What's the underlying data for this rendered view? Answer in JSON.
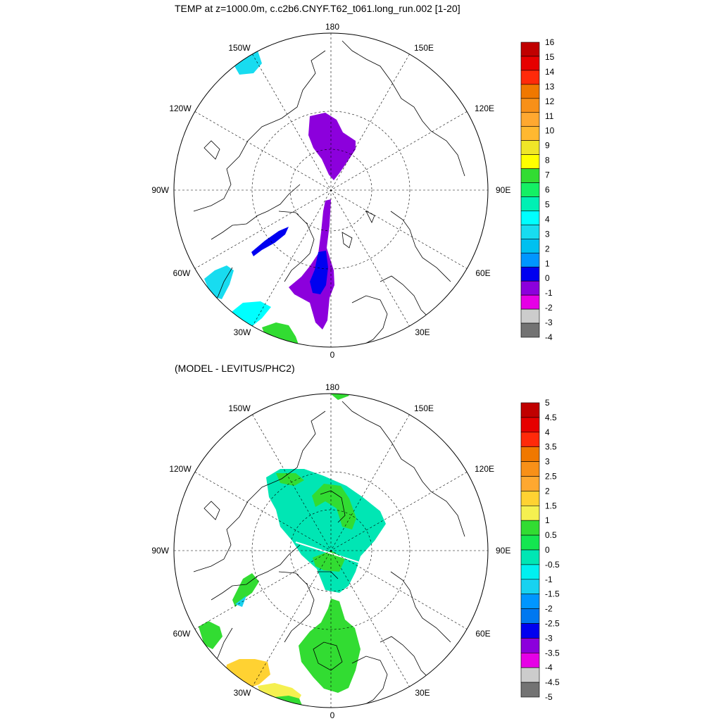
{
  "maps": [
    {
      "title": "TEMP at z=1000.0m, c.c2b6.CNYF.T62_t061.long_run.002 [1-20]",
      "lon_labels": {
        "top": "180",
        "bottom": "0",
        "left": "90W",
        "right": "90E",
        "w150": "150W",
        "w120": "120W",
        "w60": "60W",
        "w30": "30W",
        "e150": "150E",
        "e120": "120E",
        "e60": "60E",
        "e30": "30E"
      },
      "colorbar": {
        "labels": [
          "16",
          "15",
          "14",
          "13",
          "12",
          "11",
          "10",
          "9",
          "8",
          "7",
          "6",
          "5",
          "4",
          "3",
          "2",
          "1",
          "0",
          "-1",
          "-2",
          "-3",
          "-4"
        ],
        "colors": [
          "#c00000",
          "#e60000",
          "#ff2a0a",
          "#f07800",
          "#f89018",
          "#ffa830",
          "#ffb830",
          "#f0e628",
          "#ffff00",
          "#32dc32",
          "#14f064",
          "#00f0b4",
          "#00ffff",
          "#18dcf0",
          "#00c0f0",
          "#0096ff",
          "#0000f0",
          "#8c00dc",
          "#e600e6",
          "#cccccc",
          "#737373"
        ]
      }
    },
    {
      "title": "(MODEL - LEVITUS/PHC2)",
      "lon_labels": {
        "top": "180",
        "bottom": "0",
        "left": "90W",
        "right": "90E",
        "w150": "150W",
        "w120": "120W",
        "w60": "60W",
        "w30": "30W",
        "e150": "150E",
        "e120": "120E",
        "e60": "60E",
        "e30": "30E"
      },
      "colorbar": {
        "labels": [
          "5",
          "4.5",
          "4",
          "3.5",
          "3",
          "2.5",
          "2",
          "1.5",
          "1",
          "0.5",
          "0",
          "-0.5",
          "-1",
          "-1.5",
          "-2",
          "-2.5",
          "-3",
          "-3.5",
          "-4",
          "-4.5",
          "-5"
        ],
        "colors": [
          "#c00000",
          "#e60000",
          "#ff2a0a",
          "#f07800",
          "#f89018",
          "#ffa830",
          "#ffd232",
          "#f5f050",
          "#32dc32",
          "#14e650",
          "#00e6b4",
          "#00f0f0",
          "#18d2f0",
          "#0096ff",
          "#0078f0",
          "#0000f0",
          "#8c00dc",
          "#e600e6",
          "#cccccc",
          "#737373"
        ]
      }
    }
  ]
}
